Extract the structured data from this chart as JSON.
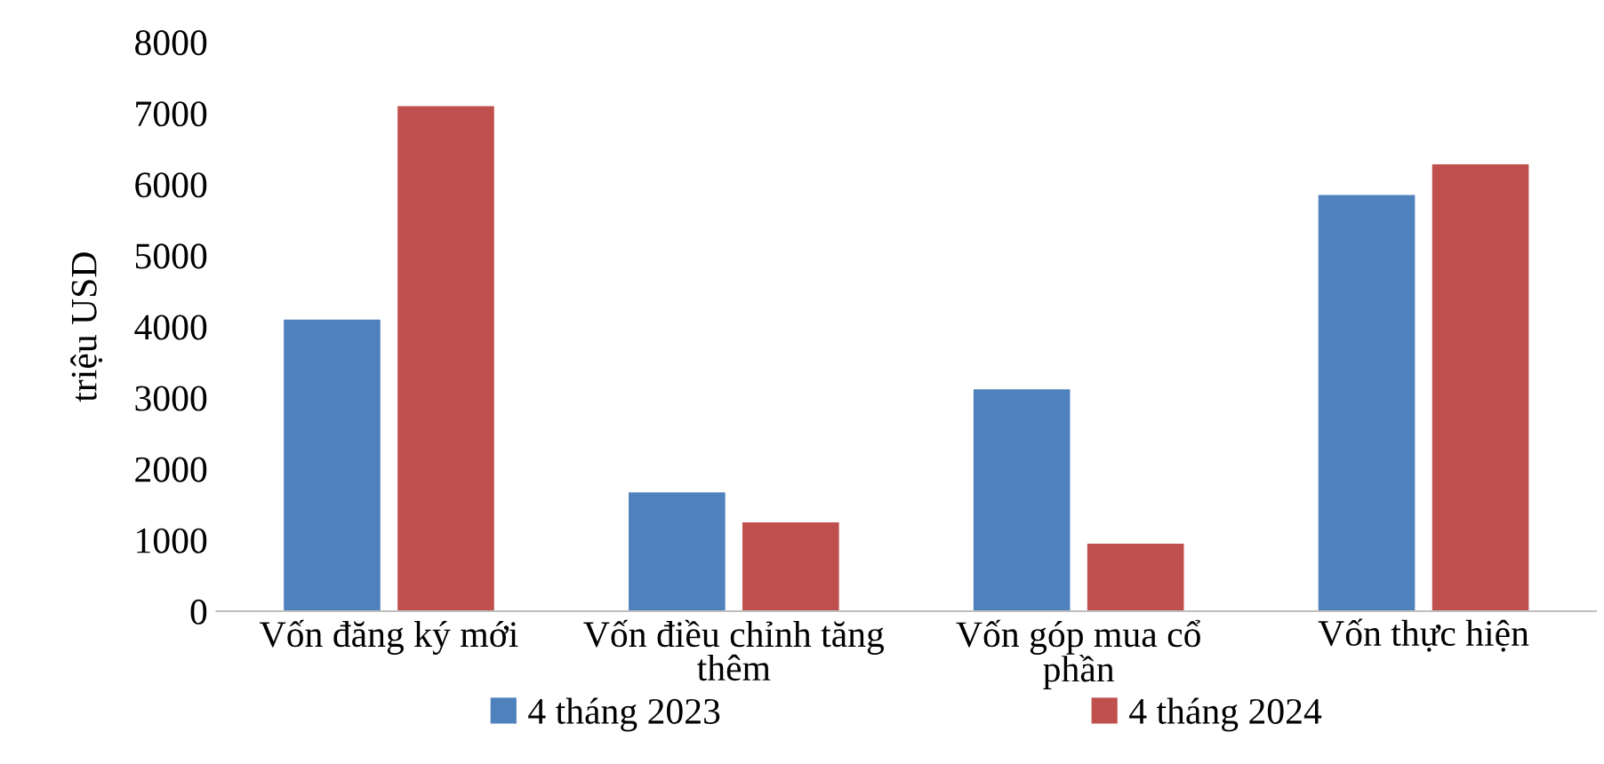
{
  "chart_data": {
    "type": "bar",
    "ylabel": "triệu USD",
    "categories": [
      "Vốn đăng ký mới",
      "Vốn điều chỉnh tăng thêm",
      "Vốn góp mua cổ phần",
      "Vốn thực hiện"
    ],
    "series": [
      {
        "name": "4 tháng 2023",
        "color": "#4f81bd",
        "values": [
          4100,
          1670,
          3120,
          5850
        ]
      },
      {
        "name": "4 tháng 2024",
        "color": "#c0504d",
        "values": [
          7100,
          1250,
          950,
          6280
        ]
      }
    ],
    "ylim": [
      0,
      8000
    ],
    "yticks": [
      0,
      1000,
      2000,
      3000,
      4000,
      5000,
      6000,
      7000,
      8000
    ],
    "grid": false,
    "legend": "bottom"
  }
}
